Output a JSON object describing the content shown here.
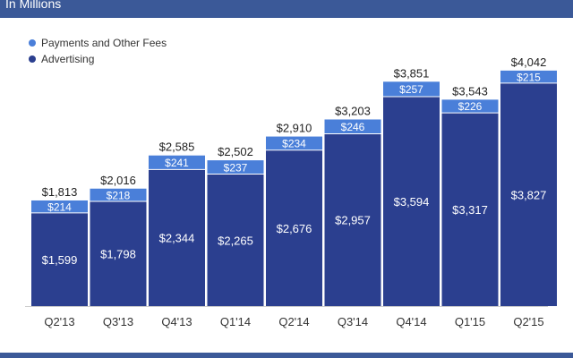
{
  "header": {
    "subtitle": "In Millions"
  },
  "legend": [
    {
      "label": "Payments and Other Fees",
      "color": "#4a7fd9"
    },
    {
      "label": "Advertising",
      "color": "#2b3f8f"
    }
  ],
  "chart_data": {
    "type": "bar",
    "stacked": true,
    "categories": [
      "Q2'13",
      "Q3'13",
      "Q4'13",
      "Q1'14",
      "Q2'14",
      "Q3'14",
      "Q4'14",
      "Q1'15",
      "Q2'15"
    ],
    "series": [
      {
        "name": "Advertising",
        "values": [
          1599,
          1798,
          2344,
          2265,
          2676,
          2957,
          3594,
          3317,
          3827
        ],
        "labels": [
          "$1,599",
          "$1,798",
          "$2,344",
          "$2,265",
          "$2,676",
          "$2,957",
          "$3,594",
          "$3,317",
          "$3,827"
        ]
      },
      {
        "name": "Payments and Other Fees",
        "values": [
          214,
          218,
          241,
          237,
          234,
          246,
          257,
          226,
          215
        ],
        "labels": [
          "$214",
          "$218",
          "$241",
          "$237",
          "$234",
          "$246",
          "$257",
          "$226",
          "$215"
        ]
      }
    ],
    "totals": [
      1813,
      2016,
      2585,
      2502,
      2910,
      3203,
      3851,
      3543,
      4042
    ],
    "total_labels": [
      "$1,813",
      "$2,016",
      "$2,585",
      "$2,502",
      "$2,910",
      "$3,203",
      "$3,851",
      "$3,543",
      "$4,042"
    ],
    "title": "",
    "ylabel": "In Millions",
    "colors": {
      "Advertising": "#2b3f8f",
      "Payments and Other Fees": "#4a7fd9"
    },
    "legend_position": "top-left",
    "grid": false
  }
}
